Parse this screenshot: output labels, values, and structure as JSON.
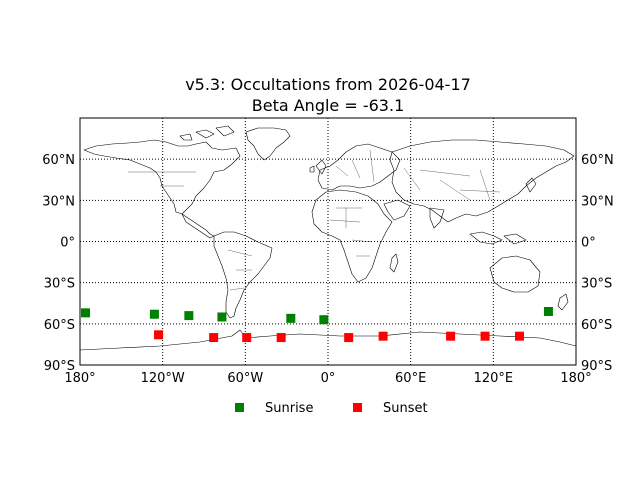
{
  "chart_data": {
    "type": "scatter",
    "title_line1": "v5.3: Occultations from 2026-04-17",
    "title_line2": "Beta Angle = -63.1",
    "xlim": [
      -180,
      180
    ],
    "ylim": [
      -90,
      90
    ],
    "projection": "cylindrical world map with coastlines and country borders",
    "grid": true,
    "x_ticks": [
      {
        "value": -180,
        "label": "180°"
      },
      {
        "value": -120,
        "label": "120°W"
      },
      {
        "value": -60,
        "label": "60°W"
      },
      {
        "value": 0,
        "label": "0°"
      },
      {
        "value": 60,
        "label": "60°E"
      },
      {
        "value": 120,
        "label": "120°E"
      },
      {
        "value": 180,
        "label": "180°"
      }
    ],
    "y_ticks": [
      {
        "value": 60,
        "label": "60°N"
      },
      {
        "value": 30,
        "label": "30°N"
      },
      {
        "value": 0,
        "label": "0°"
      },
      {
        "value": -30,
        "label": "30°S"
      },
      {
        "value": -60,
        "label": "60°S"
      },
      {
        "value": -90,
        "label": "90°S"
      }
    ],
    "legend_position": "bottom-center",
    "series": [
      {
        "name": "Sunrise",
        "color": "#008000",
        "marker": "square",
        "points": [
          {
            "lon": -176,
            "lat": -52
          },
          {
            "lon": -126,
            "lat": -53
          },
          {
            "lon": -101,
            "lat": -54
          },
          {
            "lon": -77,
            "lat": -55
          },
          {
            "lon": -27,
            "lat": -56
          },
          {
            "lon": -3,
            "lat": -57
          },
          {
            "lon": 160,
            "lat": -51
          }
        ]
      },
      {
        "name": "Sunset",
        "color": "#ff0000",
        "marker": "square",
        "points": [
          {
            "lon": -123,
            "lat": -68
          },
          {
            "lon": -83,
            "lat": -70
          },
          {
            "lon": -59,
            "lat": -70
          },
          {
            "lon": -34,
            "lat": -70
          },
          {
            "lon": 15,
            "lat": -70
          },
          {
            "lon": 40,
            "lat": -69
          },
          {
            "lon": 89,
            "lat": -69
          },
          {
            "lon": 114,
            "lat": -69
          },
          {
            "lon": 139,
            "lat": -69
          }
        ]
      }
    ]
  }
}
